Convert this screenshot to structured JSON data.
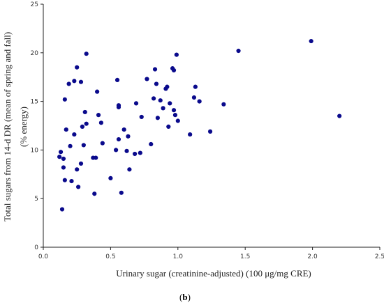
{
  "chart_data": {
    "type": "scatter",
    "title": "",
    "xlabel": "Urinary sugar (creatinine-adjusted) (100 μg/mg CRE)",
    "ylabel_line1": "Total sugars from 14-d DR (mean of spring and fall)",
    "ylabel_line2": "(% energy)",
    "xlim": [
      0,
      2.5
    ],
    "ylim": [
      0,
      25
    ],
    "x_ticks": [
      "0.0",
      "0.5",
      "1.0",
      "1.5",
      "2.0",
      "2.5"
    ],
    "y_ticks": [
      "0",
      "5",
      "10",
      "15",
      "20",
      "25"
    ],
    "grid": false,
    "point_color": "#0a0a8c",
    "points": [
      {
        "x": 0.12,
        "y": 9.3
      },
      {
        "x": 0.13,
        "y": 9.8
      },
      {
        "x": 0.14,
        "y": 3.9
      },
      {
        "x": 0.15,
        "y": 8.2
      },
      {
        "x": 0.15,
        "y": 9.1
      },
      {
        "x": 0.16,
        "y": 15.2
      },
      {
        "x": 0.16,
        "y": 6.9
      },
      {
        "x": 0.17,
        "y": 12.1
      },
      {
        "x": 0.19,
        "y": 16.8
      },
      {
        "x": 0.2,
        "y": 10.4
      },
      {
        "x": 0.21,
        "y": 6.8
      },
      {
        "x": 0.23,
        "y": 17.1
      },
      {
        "x": 0.23,
        "y": 11.6
      },
      {
        "x": 0.25,
        "y": 18.5
      },
      {
        "x": 0.25,
        "y": 8.0
      },
      {
        "x": 0.26,
        "y": 6.2
      },
      {
        "x": 0.28,
        "y": 17.0
      },
      {
        "x": 0.28,
        "y": 8.6
      },
      {
        "x": 0.29,
        "y": 12.4
      },
      {
        "x": 0.3,
        "y": 10.5
      },
      {
        "x": 0.31,
        "y": 13.9
      },
      {
        "x": 0.32,
        "y": 19.9
      },
      {
        "x": 0.32,
        "y": 12.7
      },
      {
        "x": 0.37,
        "y": 9.2
      },
      {
        "x": 0.38,
        "y": 5.5
      },
      {
        "x": 0.39,
        "y": 9.2
      },
      {
        "x": 0.4,
        "y": 16.0
      },
      {
        "x": 0.41,
        "y": 13.6
      },
      {
        "x": 0.44,
        "y": 10.7
      },
      {
        "x": 0.43,
        "y": 12.8
      },
      {
        "x": 0.5,
        "y": 7.1
      },
      {
        "x": 0.54,
        "y": 10.0
      },
      {
        "x": 0.55,
        "y": 17.2
      },
      {
        "x": 0.56,
        "y": 14.6
      },
      {
        "x": 0.56,
        "y": 14.4
      },
      {
        "x": 0.56,
        "y": 11.1
      },
      {
        "x": 0.58,
        "y": 5.6
      },
      {
        "x": 0.6,
        "y": 12.1
      },
      {
        "x": 0.62,
        "y": 9.9
      },
      {
        "x": 0.63,
        "y": 11.4
      },
      {
        "x": 0.64,
        "y": 8.0
      },
      {
        "x": 0.68,
        "y": 9.6
      },
      {
        "x": 0.69,
        "y": 14.8
      },
      {
        "x": 0.72,
        "y": 9.7
      },
      {
        "x": 0.73,
        "y": 13.4
      },
      {
        "x": 0.77,
        "y": 17.3
      },
      {
        "x": 0.8,
        "y": 10.6
      },
      {
        "x": 0.82,
        "y": 15.3
      },
      {
        "x": 0.83,
        "y": 18.3
      },
      {
        "x": 0.84,
        "y": 16.8
      },
      {
        "x": 0.85,
        "y": 13.3
      },
      {
        "x": 0.87,
        "y": 15.1
      },
      {
        "x": 0.89,
        "y": 14.3
      },
      {
        "x": 0.91,
        "y": 16.3
      },
      {
        "x": 0.92,
        "y": 16.5
      },
      {
        "x": 0.93,
        "y": 12.4
      },
      {
        "x": 0.94,
        "y": 14.8
      },
      {
        "x": 0.96,
        "y": 18.4
      },
      {
        "x": 0.97,
        "y": 18.2
      },
      {
        "x": 0.97,
        "y": 14.1
      },
      {
        "x": 0.98,
        "y": 13.6
      },
      {
        "x": 0.99,
        "y": 19.8
      },
      {
        "x": 1.0,
        "y": 13.0
      },
      {
        "x": 1.09,
        "y": 11.6
      },
      {
        "x": 1.12,
        "y": 15.4
      },
      {
        "x": 1.13,
        "y": 16.5
      },
      {
        "x": 1.16,
        "y": 15.0
      },
      {
        "x": 1.24,
        "y": 11.9
      },
      {
        "x": 1.34,
        "y": 14.7
      },
      {
        "x": 1.45,
        "y": 20.2
      },
      {
        "x": 1.99,
        "y": 21.2
      },
      {
        "x": 2.2,
        "y": 13.5
      }
    ]
  },
  "caption": {
    "open": "(",
    "letter": "b",
    "close": ")"
  }
}
